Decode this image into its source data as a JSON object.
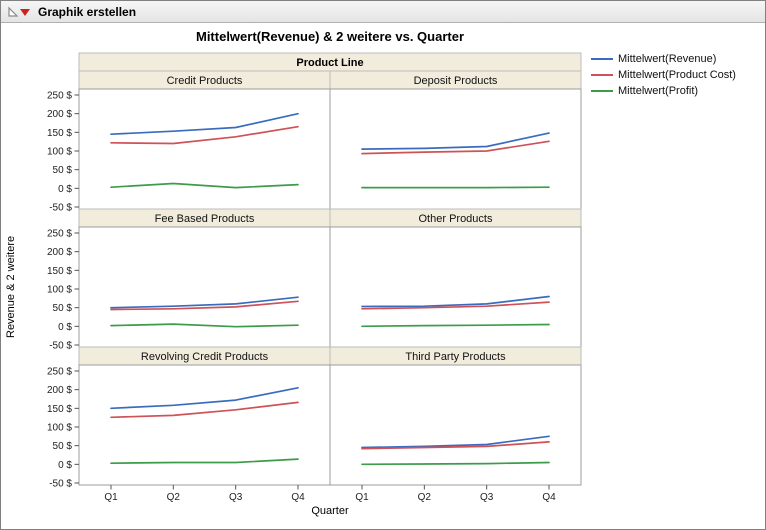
{
  "window": {
    "title": "Graphik erstellen"
  },
  "chart": {
    "title": "Mittelwert(Revenue) & 2 weitere vs. Quarter",
    "group_label": "Product Line",
    "xlabel": "Quarter",
    "ylabel": "Revenue & 2 weitere",
    "legend": [
      {
        "label": "Mittelwert(Revenue)",
        "color": "#3a6cbe"
      },
      {
        "label": "Mittelwert(Product Cost)",
        "color": "#ce5257"
      },
      {
        "label": "Mittelwert(Profit)",
        "color": "#3d9c4b"
      }
    ]
  },
  "chart_data": {
    "type": "line",
    "x": [
      "Q1",
      "Q2",
      "Q3",
      "Q4"
    ],
    "xlabel": "Quarter",
    "ylabel": "Revenue & 2 weitere",
    "ylim": [
      -50,
      250
    ],
    "y_ticks": [
      {
        "value": 250,
        "label": "250 $"
      },
      {
        "value": 200,
        "label": "200 $"
      },
      {
        "value": 150,
        "label": "150 $"
      },
      {
        "value": 100,
        "label": "100 $"
      },
      {
        "value": 50,
        "label": "50 $"
      },
      {
        "value": 0,
        "label": "0 $"
      },
      {
        "value": -50,
        "label": "-50 $"
      }
    ],
    "series_names": [
      "Mittelwert(Revenue)",
      "Mittelwert(Product Cost)",
      "Mittelwert(Profit)"
    ],
    "panels": [
      {
        "name": "Credit Products",
        "series": [
          [
            145,
            153,
            163,
            200
          ],
          [
            122,
            120,
            138,
            165
          ],
          [
            3,
            13,
            2,
            10
          ]
        ]
      },
      {
        "name": "Deposit Products",
        "series": [
          [
            105,
            107,
            112,
            148
          ],
          [
            93,
            97,
            100,
            126
          ],
          [
            2,
            2,
            2,
            3
          ]
        ]
      },
      {
        "name": "Fee Based Products",
        "series": [
          [
            50,
            54,
            60,
            78
          ],
          [
            45,
            47,
            52,
            67
          ],
          [
            2,
            6,
            -1,
            3
          ]
        ]
      },
      {
        "name": "Other Products",
        "series": [
          [
            53,
            54,
            60,
            80
          ],
          [
            47,
            50,
            54,
            65
          ],
          [
            0,
            2,
            3,
            5
          ]
        ]
      },
      {
        "name": "Revolving Credit Products",
        "series": [
          [
            150,
            158,
            172,
            205
          ],
          [
            126,
            131,
            146,
            166
          ],
          [
            3,
            5,
            5,
            14
          ]
        ]
      },
      {
        "name": "Third Party Products",
        "series": [
          [
            45,
            48,
            53,
            75
          ],
          [
            42,
            45,
            48,
            60
          ],
          [
            0,
            1,
            2,
            5
          ]
        ]
      }
    ]
  }
}
